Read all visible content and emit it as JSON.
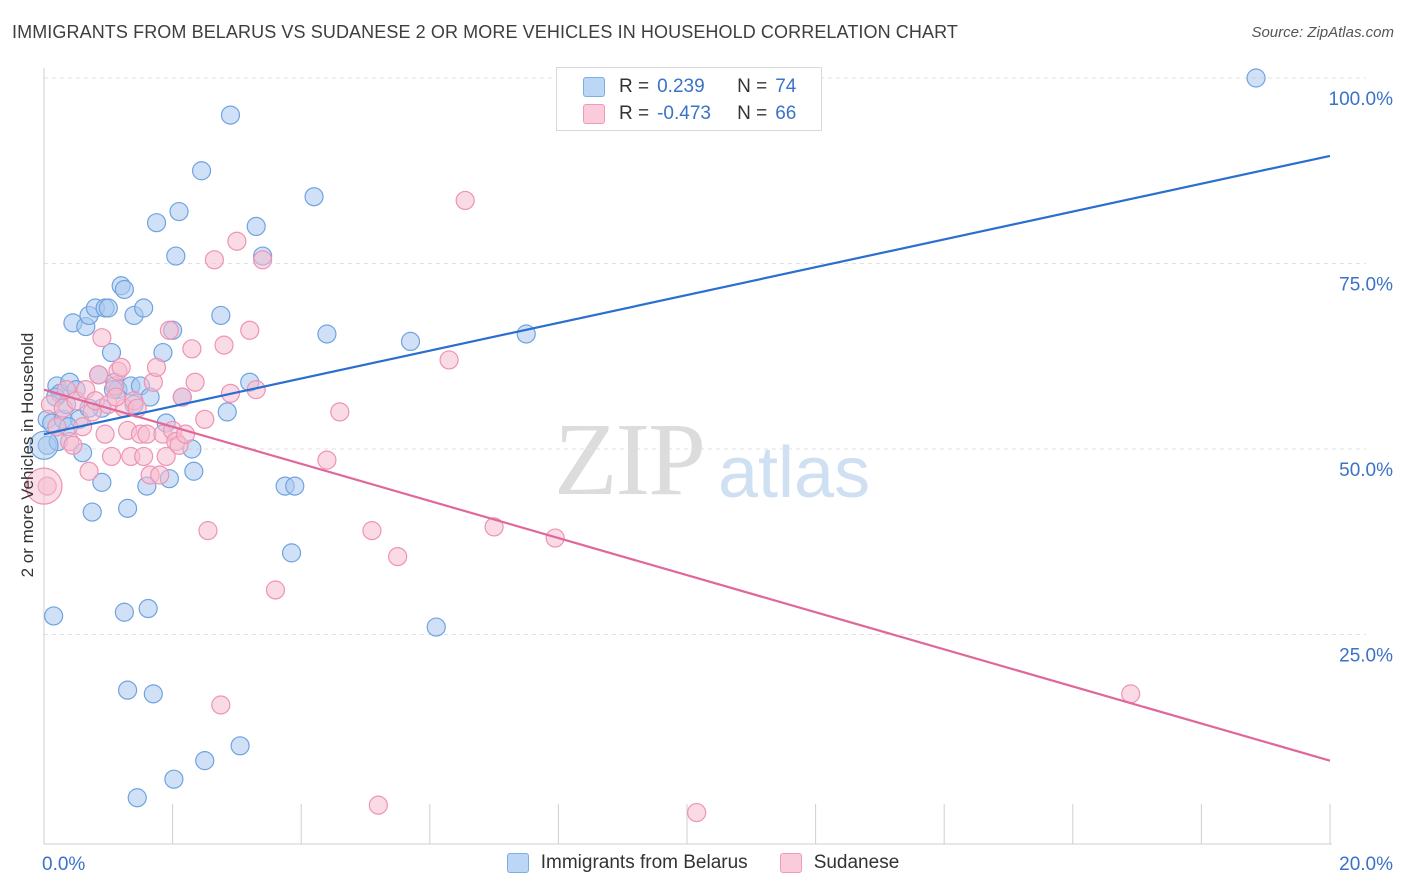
{
  "header": {
    "title": "IMMIGRANTS FROM BELARUS VS SUDANESE 2 OR MORE VEHICLES IN HOUSEHOLD CORRELATION CHART",
    "source": "Source: ZipAtlas.com"
  },
  "watermark": {
    "zip": "ZIP",
    "atlas": "atlas"
  },
  "legend": {
    "rows": [
      {
        "r_label": "R =",
        "r_value": "0.239",
        "n_label": "N =",
        "n_value": "74",
        "color": "#7aaee8"
      },
      {
        "r_label": "R =",
        "r_value": "-0.473",
        "n_label": "N =",
        "n_value": "66",
        "color": "#f09ab8"
      }
    ]
  },
  "bottom_legend": {
    "items": [
      {
        "label": "Immigrants from Belarus",
        "color": "#7aaee8"
      },
      {
        "label": "Sudanese",
        "color": "#f09ab8"
      }
    ]
  },
  "colors": {
    "blue_fill": "#a9c9f0",
    "blue_stroke": "#6fa3e0",
    "blue_line": "#2a6fd0",
    "pink_fill": "#f6bcd0",
    "pink_stroke": "#ee93b3",
    "pink_line": "#e0679a",
    "tick_label": "#3a72c8"
  },
  "chart_data": {
    "type": "scatter",
    "title": "IMMIGRANTS FROM BELARUS VS SUDANESE 2 OR MORE VEHICLES IN HOUSEHOLD CORRELATION CHART",
    "xlabel": "",
    "ylabel": "2 or more Vehicles in Household",
    "xlim": [
      0,
      20
    ],
    "ylim": [
      0,
      100
    ],
    "x_tick_labels": [
      "0.0%",
      "20.0%"
    ],
    "y_ticks": [
      25,
      50,
      75,
      100
    ],
    "y_tick_labels": [
      "25.0%",
      "50.0%",
      "75.0%",
      "100.0%"
    ],
    "grid": true,
    "legend_placement": "top-center",
    "series": [
      {
        "name": "Immigrants from Belarus",
        "color": "#7aaee8",
        "trend": {
          "x": [
            0,
            20
          ],
          "y": [
            52,
            89.5
          ]
        },
        "points": [
          [
            0.05,
            50.5
          ],
          [
            0.05,
            54.0
          ],
          [
            0.12,
            53.5
          ],
          [
            0.15,
            27.5
          ],
          [
            0.2,
            58.5
          ],
          [
            0.22,
            51.0
          ],
          [
            0.25,
            57.5
          ],
          [
            0.3,
            54.0
          ],
          [
            0.35,
            56.0
          ],
          [
            0.4,
            59.0
          ],
          [
            0.45,
            67.0
          ],
          [
            0.5,
            58.0
          ],
          [
            0.55,
            54.0
          ],
          [
            0.6,
            49.5
          ],
          [
            0.65,
            66.5
          ],
          [
            0.7,
            68.0
          ],
          [
            0.75,
            41.5
          ],
          [
            0.8,
            69.0
          ],
          [
            0.85,
            60.0
          ],
          [
            0.9,
            55.5
          ],
          [
            0.9,
            45.5
          ],
          [
            0.95,
            69.0
          ],
          [
            1.0,
            69.0
          ],
          [
            1.05,
            63.0
          ],
          [
            1.1,
            59.0
          ],
          [
            1.15,
            58.0
          ],
          [
            1.2,
            72.0
          ],
          [
            1.25,
            28.0
          ],
          [
            1.3,
            42.0
          ],
          [
            1.3,
            17.5
          ],
          [
            1.35,
            58.5
          ],
          [
            1.4,
            56.0
          ],
          [
            1.4,
            68.0
          ],
          [
            1.45,
            3.0
          ],
          [
            1.5,
            58.5
          ],
          [
            1.55,
            69.0
          ],
          [
            1.6,
            45.0
          ],
          [
            1.62,
            28.5
          ],
          [
            1.65,
            57.0
          ],
          [
            1.7,
            17.0
          ],
          [
            1.75,
            80.5
          ],
          [
            1.85,
            63.0
          ],
          [
            1.9,
            53.5
          ],
          [
            1.95,
            46.0
          ],
          [
            2.0,
            66.0
          ],
          [
            2.02,
            5.5
          ],
          [
            2.05,
            76.0
          ],
          [
            2.1,
            82.0
          ],
          [
            2.15,
            57.0
          ],
          [
            2.3,
            50.0
          ],
          [
            2.33,
            47.0
          ],
          [
            2.45,
            87.5
          ],
          [
            2.5,
            8.0
          ],
          [
            2.75,
            68.0
          ],
          [
            2.85,
            55.0
          ],
          [
            2.9,
            95.0
          ],
          [
            3.05,
            10.0
          ],
          [
            3.2,
            59.0
          ],
          [
            3.3,
            80.0
          ],
          [
            3.4,
            76.0
          ],
          [
            3.75,
            45.0
          ],
          [
            3.85,
            36.0
          ],
          [
            3.9,
            45.0
          ],
          [
            4.2,
            84.0
          ],
          [
            4.4,
            65.5
          ],
          [
            5.7,
            64.5
          ],
          [
            6.1,
            26.0
          ],
          [
            7.5,
            65.5
          ],
          [
            18.85,
            100.0
          ],
          [
            0.18,
            57.0
          ],
          [
            0.38,
            53.0
          ],
          [
            0.7,
            55.5
          ],
          [
            1.08,
            58.0
          ],
          [
            1.25,
            71.5
          ]
        ]
      },
      {
        "name": "Sudanese",
        "color": "#f09ab8",
        "trend": {
          "x": [
            0,
            20
          ],
          "y": [
            58,
            8
          ]
        },
        "points": [
          [
            0.05,
            45.0
          ],
          [
            0.1,
            56.0
          ],
          [
            0.2,
            53.0
          ],
          [
            0.3,
            55.5
          ],
          [
            0.35,
            58.0
          ],
          [
            0.4,
            51.0
          ],
          [
            0.5,
            56.5
          ],
          [
            0.6,
            53.0
          ],
          [
            0.65,
            58.0
          ],
          [
            0.7,
            47.0
          ],
          [
            0.75,
            55.0
          ],
          [
            0.8,
            56.5
          ],
          [
            0.85,
            60.0
          ],
          [
            0.9,
            65.0
          ],
          [
            0.95,
            52.0
          ],
          [
            1.0,
            56.0
          ],
          [
            1.05,
            49.0
          ],
          [
            1.1,
            58.5
          ],
          [
            1.15,
            60.5
          ],
          [
            1.2,
            61.0
          ],
          [
            1.25,
            55.5
          ],
          [
            1.3,
            52.5
          ],
          [
            1.35,
            49.0
          ],
          [
            1.4,
            56.5
          ],
          [
            1.45,
            55.5
          ],
          [
            1.5,
            52.0
          ],
          [
            1.55,
            49.0
          ],
          [
            1.6,
            52.0
          ],
          [
            1.65,
            46.5
          ],
          [
            1.7,
            59.0
          ],
          [
            1.75,
            61.0
          ],
          [
            1.8,
            46.5
          ],
          [
            1.85,
            52.0
          ],
          [
            1.9,
            49.0
          ],
          [
            1.95,
            66.0
          ],
          [
            2.0,
            52.5
          ],
          [
            2.05,
            51.0
          ],
          [
            2.1,
            50.5
          ],
          [
            2.15,
            57.0
          ],
          [
            2.2,
            52.0
          ],
          [
            2.3,
            63.5
          ],
          [
            2.35,
            59.0
          ],
          [
            2.5,
            54.0
          ],
          [
            2.55,
            39.0
          ],
          [
            2.65,
            75.5
          ],
          [
            2.75,
            15.5
          ],
          [
            2.8,
            64.0
          ],
          [
            2.9,
            57.5
          ],
          [
            3.0,
            78.0
          ],
          [
            3.2,
            66.0
          ],
          [
            3.3,
            58.0
          ],
          [
            3.4,
            75.5
          ],
          [
            3.6,
            31.0
          ],
          [
            4.4,
            48.5
          ],
          [
            4.6,
            55.0
          ],
          [
            5.1,
            39.0
          ],
          [
            5.2,
            2.0
          ],
          [
            5.5,
            35.5
          ],
          [
            6.3,
            62.0
          ],
          [
            6.55,
            83.5
          ],
          [
            7.0,
            39.5
          ],
          [
            7.95,
            38.0
          ],
          [
            10.15,
            1.0
          ],
          [
            16.9,
            17.0
          ],
          [
            0.45,
            50.5
          ],
          [
            1.12,
            57.0
          ]
        ]
      }
    ]
  }
}
